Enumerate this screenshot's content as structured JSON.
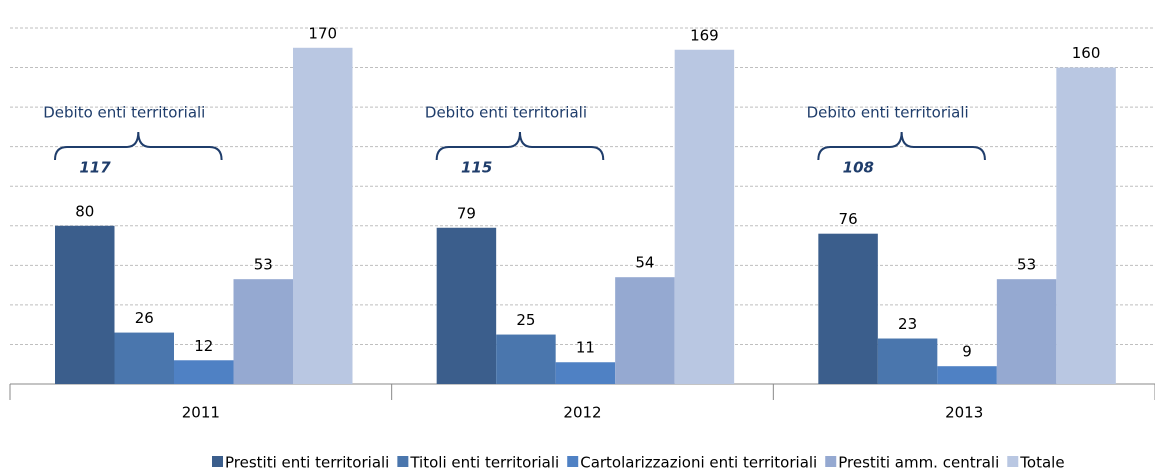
{
  "chart_data": {
    "type": "bar",
    "categories": [
      "2011",
      "2012",
      "2013"
    ],
    "series": [
      {
        "name": "Prestiti enti territoriali",
        "color": "#3b5e8c",
        "values": [
          80,
          79,
          76
        ]
      },
      {
        "name": "Titoli enti territoriali",
        "color": "#4a76ad",
        "values": [
          26,
          25,
          23
        ]
      },
      {
        "name": "Cartolarizzazioni enti territoriali",
        "color": "#4f81c4",
        "values": [
          12,
          11,
          9
        ]
      },
      {
        "name": "Prestiti amm. centrali",
        "color": "#95a9d1",
        "values": [
          53,
          54,
          53
        ]
      },
      {
        "name": "Totale",
        "color": "#b9c7e2",
        "values": [
          170,
          169,
          160
        ]
      }
    ],
    "ylim": [
      0,
      180
    ],
    "yticks": [
      0,
      20,
      40,
      60,
      80,
      100,
      120,
      140,
      160,
      180
    ],
    "grid": true,
    "annotations": [
      {
        "text": "Debito enti territoriali",
        "value": 117
      },
      {
        "text": "Debito enti territoriali",
        "value": 115
      },
      {
        "text": "Debito enti territoriali",
        "value": 108
      }
    ],
    "legend": "bottom"
  }
}
